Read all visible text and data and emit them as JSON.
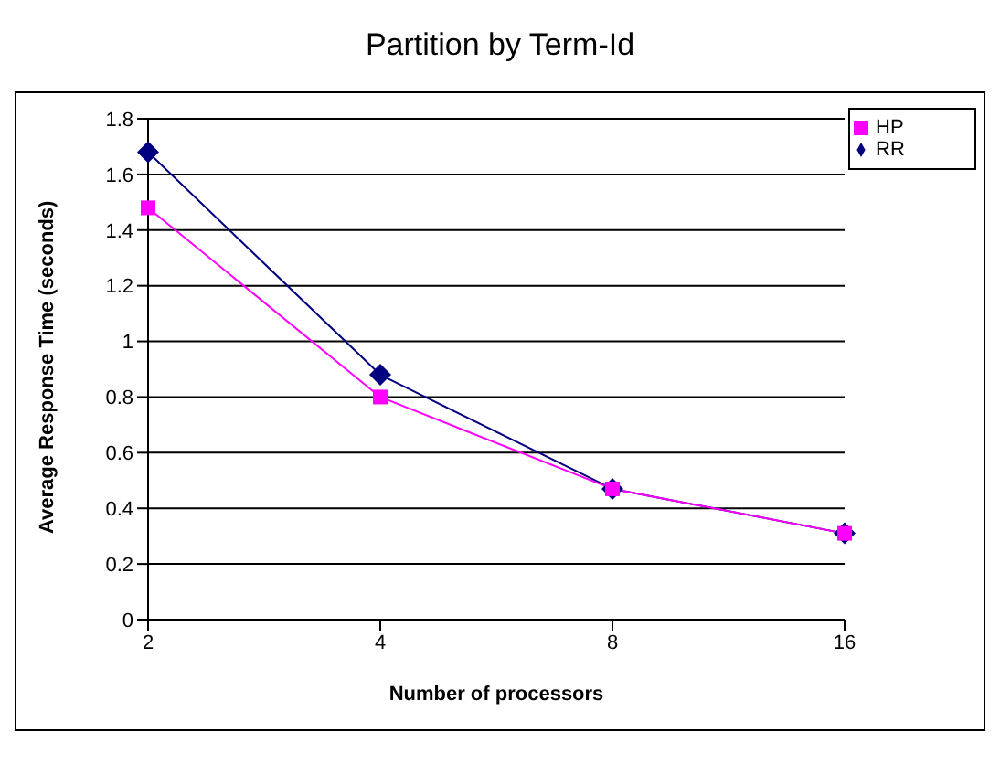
{
  "chart_data": {
    "type": "line",
    "title": "Partition by Term-Id",
    "xlabel": "Number of processors",
    "ylabel": "Average Response Time (seconds)",
    "categories": [
      "2",
      "4",
      "8",
      "16"
    ],
    "series": [
      {
        "name": "RR",
        "color": "#000080",
        "marker": "diamond",
        "values": [
          1.68,
          0.88,
          0.47,
          0.31
        ]
      },
      {
        "name": "HP",
        "color": "#ff00ff",
        "marker": "square",
        "values": [
          1.48,
          0.8,
          0.47,
          0.31
        ]
      }
    ],
    "ylim": [
      0,
      1.8
    ],
    "yticks": [
      0,
      0.2,
      0.4,
      0.6,
      0.8,
      1,
      1.2,
      1.4,
      1.6,
      1.8
    ],
    "grid": "y",
    "legend": "top right"
  }
}
